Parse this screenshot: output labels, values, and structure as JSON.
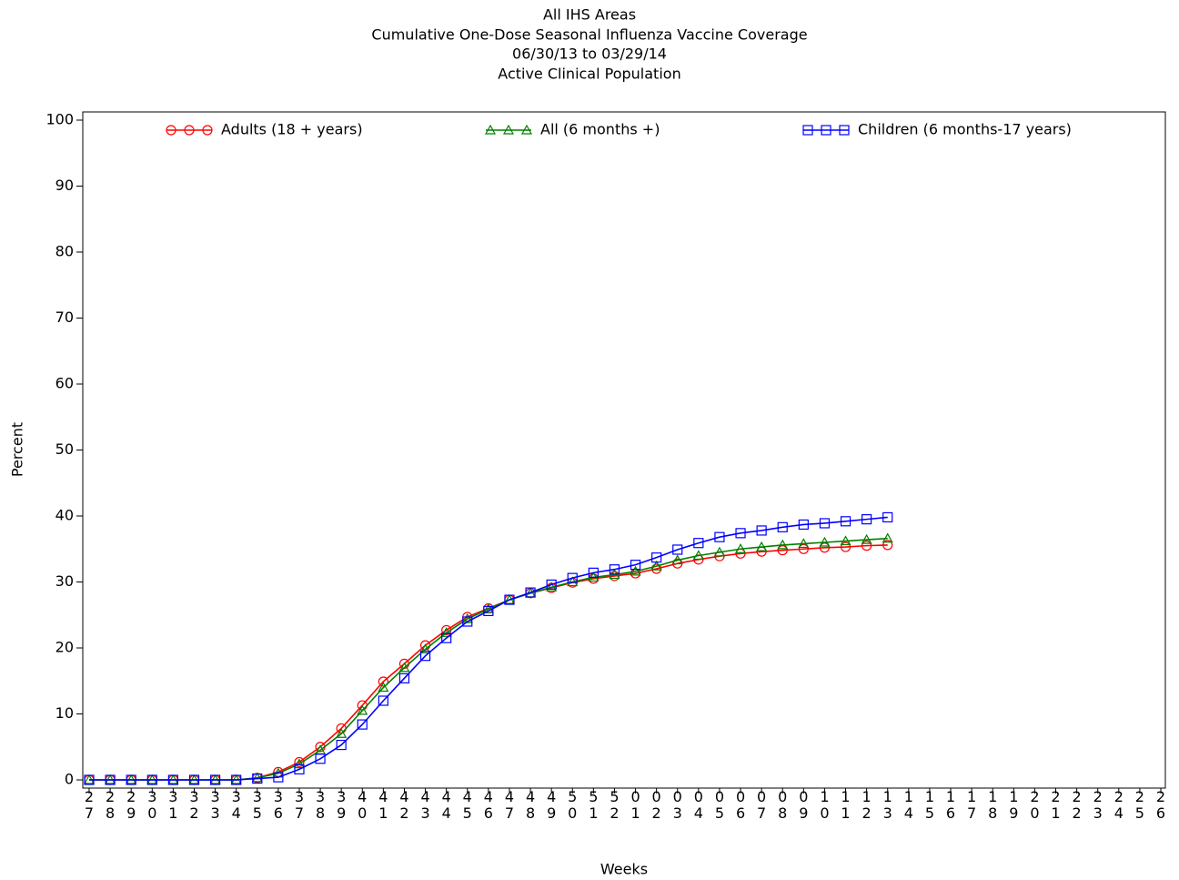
{
  "chart_data": {
    "type": "line",
    "title_lines": [
      "All IHS Areas",
      "Cumulative One-Dose Seasonal Influenza Vaccine Coverage",
      "06/30/13 to 03/29/14",
      "Active Clinical Population"
    ],
    "x_label": "Weeks",
    "y_label": "Percent",
    "categories": [
      "27",
      "28",
      "29",
      "30",
      "31",
      "32",
      "33",
      "34",
      "35",
      "36",
      "37",
      "38",
      "39",
      "40",
      "41",
      "42",
      "43",
      "44",
      "45",
      "46",
      "47",
      "48",
      "49",
      "50",
      "51",
      "52",
      "01",
      "02",
      "03",
      "04",
      "05",
      "06",
      "07",
      "08",
      "09",
      "10",
      "11",
      "12",
      "13",
      "14",
      "15",
      "16",
      "17",
      "18",
      "19",
      "20",
      "21",
      "22",
      "23",
      "24",
      "25",
      "26"
    ],
    "series": [
      {
        "name": "Adults (18 + years)",
        "color": "#ff0000",
        "marker": "circle",
        "values": [
          0,
          0,
          0,
          0,
          0,
          0,
          0,
          0,
          0.3,
          1.2,
          2.7,
          5.0,
          7.8,
          11.3,
          14.9,
          17.6,
          20.4,
          22.7,
          24.7,
          26.0,
          27.3,
          28.3,
          29.1,
          29.9,
          30.5,
          30.9,
          31.3,
          32.0,
          32.8,
          33.4,
          33.9,
          34.3,
          34.6,
          34.8,
          35.0,
          35.2,
          35.3,
          35.5,
          35.6,
          null,
          null,
          null,
          null,
          null,
          null,
          null,
          null,
          null,
          null,
          null,
          null,
          null
        ]
      },
      {
        "name": "All (6 months +)",
        "color": "#008000",
        "marker": "triangle",
        "values": [
          0,
          0,
          0,
          0,
          0,
          0,
          0,
          0,
          0.3,
          1.0,
          2.4,
          4.5,
          7.0,
          10.5,
          14.0,
          17.0,
          19.8,
          22.3,
          24.4,
          25.9,
          27.3,
          28.3,
          29.2,
          30.0,
          30.7,
          31.1,
          31.6,
          32.4,
          33.3,
          34.0,
          34.5,
          35.0,
          35.3,
          35.6,
          35.8,
          36.0,
          36.2,
          36.4,
          36.6,
          null,
          null,
          null,
          null,
          null,
          null,
          null,
          null,
          null,
          null,
          null,
          null,
          null
        ]
      },
      {
        "name": "Children (6 months-17 years)",
        "color": "#0000ff",
        "marker": "square",
        "values": [
          0,
          0,
          0,
          0,
          0,
          0,
          0,
          0,
          0.2,
          0.4,
          1.6,
          3.2,
          5.3,
          8.4,
          12.0,
          15.4,
          18.8,
          21.5,
          24.0,
          25.6,
          27.3,
          28.4,
          29.6,
          30.6,
          31.4,
          31.9,
          32.6,
          33.7,
          34.9,
          35.9,
          36.8,
          37.4,
          37.8,
          38.3,
          38.7,
          38.9,
          39.2,
          39.5,
          39.8,
          null,
          null,
          null,
          null,
          null,
          null,
          null,
          null,
          null,
          null,
          null,
          null,
          null
        ]
      }
    ],
    "ylim": [
      0,
      100
    ],
    "yticks": [
      0,
      10,
      20,
      30,
      40,
      50,
      60,
      70,
      80,
      90,
      100
    ],
    "grid": false,
    "legend": "top"
  }
}
